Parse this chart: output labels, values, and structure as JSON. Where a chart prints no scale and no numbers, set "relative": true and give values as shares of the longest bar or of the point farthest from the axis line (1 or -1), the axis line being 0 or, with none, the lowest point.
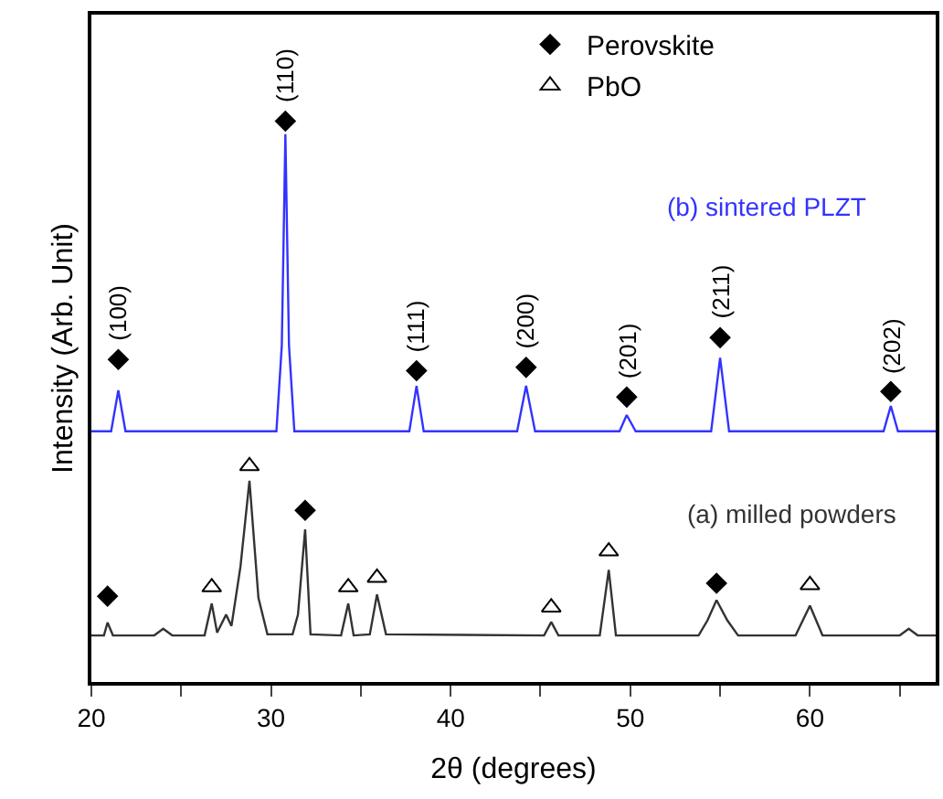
{
  "chart_data": {
    "type": "line",
    "relative": true,
    "xlabel": "2θ (degrees)",
    "ylabel": "Intensity (Arb. Unit)",
    "xlim": [
      20,
      67
    ],
    "xticks": [
      20,
      {
        "value": 25,
        "label": null
      },
      30,
      {
        "value": 35,
        "label": null
      },
      40,
      {
        "value": 45,
        "label": null
      },
      50,
      {
        "value": 55,
        "label": null
      },
      60,
      {
        "value": 65,
        "label": null
      }
    ],
    "legend": "top right",
    "series": [
      {
        "name": "(b) sintered PLZT",
        "color": "#3333ff",
        "x": [
          20,
          21.1,
          21.5,
          21.9,
          30.3,
          30.6,
          30.8,
          31.0,
          31.3,
          37.7,
          38.1,
          38.5,
          43.7,
          44.2,
          44.7,
          49.4,
          49.8,
          50.3,
          54.5,
          55.0,
          55.5,
          64.1,
          64.5,
          64.9,
          67
        ],
        "values": [
          0.447,
          0.447,
          0.52,
          0.447,
          0.447,
          0.6,
          0.977,
          0.6,
          0.447,
          0.447,
          0.528,
          0.447,
          0.447,
          0.528,
          0.447,
          0.447,
          0.476,
          0.447,
          0.447,
          0.578,
          0.447,
          0.447,
          0.492,
          0.447,
          0.447
        ]
      },
      {
        "name": "(a) milled powders",
        "color": "#333333",
        "x": [
          20,
          20.7,
          20.9,
          21.2,
          23.5,
          24,
          24.5,
          26.3,
          26.7,
          27.0,
          27.5,
          27.8,
          28.3,
          28.8,
          29.3,
          29.8,
          31.2,
          31.5,
          31.9,
          32.2,
          33.9,
          34.3,
          34.6,
          35.5,
          35.9,
          36.4,
          45.2,
          45.6,
          46.0,
          48.3,
          48.8,
          49.2,
          53.8,
          54.3,
          54.8,
          55.4,
          56,
          59.2,
          60,
          60.7,
          65,
          65.5,
          66,
          67
        ],
        "values": [
          0.083,
          0.083,
          0.106,
          0.083,
          0.083,
          0.095,
          0.083,
          0.083,
          0.14,
          0.088,
          0.12,
          0.1,
          0.206,
          0.359,
          0.15,
          0.085,
          0.085,
          0.12,
          0.272,
          0.085,
          0.083,
          0.14,
          0.083,
          0.085,
          0.156,
          0.085,
          0.083,
          0.107,
          0.083,
          0.083,
          0.2,
          0.083,
          0.083,
          0.11,
          0.146,
          0.11,
          0.083,
          0.083,
          0.136,
          0.083,
          0.083,
          0.095,
          0.083,
          0.083
        ]
      },
      {
        "name": "Perovskite",
        "color": "#000000",
        "type": "scatter",
        "marker": "diamond",
        "x": [
          21.5,
          30.8,
          38.1,
          44.2,
          49.8,
          55.0,
          64.5,
          20.9,
          31.9,
          54.8
        ],
        "values": [
          0.575,
          1.0,
          0.555,
          0.561,
          0.508,
          0.614,
          0.518,
          0.153,
          0.306,
          0.176
        ]
      },
      {
        "name": "PbO",
        "color": "#000000",
        "type": "scatter",
        "marker": "triangle",
        "x": [
          26.7,
          28.8,
          34.3,
          35.9,
          45.6,
          48.8,
          60.0
        ],
        "values": [
          0.169,
          0.385,
          0.169,
          0.186,
          0.133,
          0.233,
          0.173
        ]
      }
    ],
    "annotations": [
      {
        "text": "(100)",
        "x": 21.5,
        "y": 0.575
      },
      {
        "text": "(110)",
        "x": 30.8,
        "y": 1.0
      },
      {
        "text": "(111)",
        "x": 38.1,
        "y": 0.555
      },
      {
        "text": "(200)",
        "x": 44.2,
        "y": 0.561
      },
      {
        "text": "(201)",
        "x": 49.8,
        "y": 0.508
      },
      {
        "text": "(211)",
        "x": 55.0,
        "y": 0.614
      },
      {
        "text": "(202)",
        "x": 64.5,
        "y": 0.518
      }
    ]
  }
}
